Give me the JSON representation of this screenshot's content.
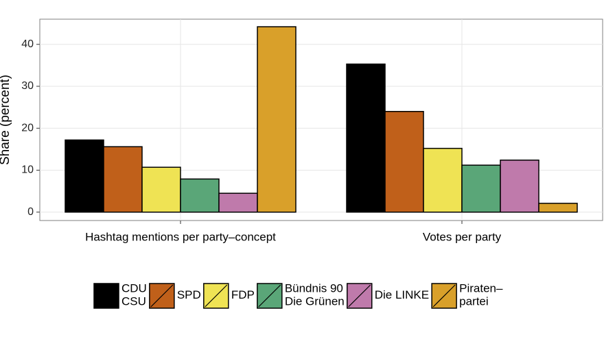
{
  "chart_data": {
    "type": "bar",
    "y_label": "Share (percent)",
    "categories": [
      "Hashtag mentions per party–concept",
      "Votes per party"
    ],
    "series": [
      {
        "name": "CDU\nCSU",
        "color": "#000000",
        "values": [
          17.2,
          35.3
        ]
      },
      {
        "name": "SPD",
        "color": "#c0601a",
        "values": [
          15.6,
          24.0
        ]
      },
      {
        "name": "FDP",
        "color": "#efe354",
        "values": [
          10.7,
          15.2
        ]
      },
      {
        "name": "Bündnis 90\nDie Grünen",
        "color": "#5aa678",
        "values": [
          7.9,
          11.2
        ]
      },
      {
        "name": "Die LINKE",
        "color": "#bf7aab",
        "values": [
          4.5,
          12.4
        ]
      },
      {
        "name": "Piraten–\npartei",
        "color": "#d9a02a",
        "values": [
          44.2,
          2.1
        ]
      }
    ],
    "ylim": [
      -2.0,
      46.0
    ],
    "yticks": [
      0,
      10,
      20,
      30,
      40
    ],
    "grid": true
  }
}
